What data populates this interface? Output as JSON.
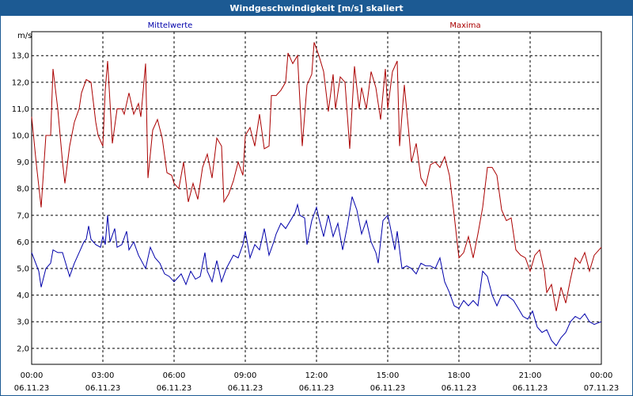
{
  "window": {
    "title": "Windgeschwindigkeit [m/s] skaliert"
  },
  "colors": {
    "mean": "#0000aa",
    "max": "#aa0000",
    "grid": "#000000",
    "titlebar": "#1c5a93"
  },
  "chart_data": {
    "type": "line",
    "title": "Windgeschwindigkeit [m/s] skaliert",
    "ylabel": "m/s",
    "xlabel": "",
    "ylim": [
      1.4,
      13.9
    ],
    "xlim": [
      0,
      24
    ],
    "grid": true,
    "legend_placement": "top",
    "x_ticks": [
      {
        "x": 0,
        "time": "00:00",
        "date": "06.11.23"
      },
      {
        "x": 3,
        "time": "03:00",
        "date": "06.11.23"
      },
      {
        "x": 6,
        "time": "06:00",
        "date": "06.11.23"
      },
      {
        "x": 9,
        "time": "09:00",
        "date": "06.11.23"
      },
      {
        "x": 12,
        "time": "12:00",
        "date": "06.11.23"
      },
      {
        "x": 15,
        "time": "15:00",
        "date": "06.11.23"
      },
      {
        "x": 18,
        "time": "18:00",
        "date": "06.11.23"
      },
      {
        "x": 21,
        "time": "21:00",
        "date": "06.11.23"
      },
      {
        "x": 24,
        "time": "00:00",
        "date": "07.11.23"
      }
    ],
    "y_ticks": [
      {
        "v": 2.0,
        "label": "2,0"
      },
      {
        "v": 3.0,
        "label": "3,0"
      },
      {
        "v": 4.0,
        "label": "4,0"
      },
      {
        "v": 5.0,
        "label": "5,0"
      },
      {
        "v": 6.0,
        "label": "6,0"
      },
      {
        "v": 7.0,
        "label": "7,0"
      },
      {
        "v": 8.0,
        "label": "8,0"
      },
      {
        "v": 9.0,
        "label": "9,0"
      },
      {
        "v": 10.0,
        "label": "10,0"
      },
      {
        "v": 11.0,
        "label": "11,0"
      },
      {
        "v": 12.0,
        "label": "12,0"
      },
      {
        "v": 13.0,
        "label": "13,0"
      }
    ],
    "series": [
      {
        "name": "Mittelwerte",
        "color": "#0000aa",
        "points": [
          [
            0.0,
            5.6
          ],
          [
            0.3,
            4.9
          ],
          [
            0.4,
            4.3
          ],
          [
            0.6,
            5.0
          ],
          [
            0.8,
            5.2
          ],
          [
            0.9,
            5.7
          ],
          [
            1.1,
            5.6
          ],
          [
            1.3,
            5.6
          ],
          [
            1.5,
            5.0
          ],
          [
            1.6,
            4.7
          ],
          [
            1.8,
            5.2
          ],
          [
            2.0,
            5.6
          ],
          [
            2.2,
            6.0
          ],
          [
            2.3,
            6.1
          ],
          [
            2.4,
            6.6
          ],
          [
            2.5,
            6.1
          ],
          [
            2.7,
            5.9
          ],
          [
            2.9,
            5.8
          ],
          [
            3.0,
            6.2
          ],
          [
            3.1,
            5.9
          ],
          [
            3.2,
            7.0
          ],
          [
            3.3,
            6.0
          ],
          [
            3.5,
            6.5
          ],
          [
            3.6,
            5.8
          ],
          [
            3.8,
            5.9
          ],
          [
            4.0,
            6.4
          ],
          [
            4.1,
            5.7
          ],
          [
            4.3,
            6.0
          ],
          [
            4.5,
            5.5
          ],
          [
            4.8,
            5.0
          ],
          [
            5.0,
            5.8
          ],
          [
            5.2,
            5.4
          ],
          [
            5.4,
            5.2
          ],
          [
            5.6,
            4.8
          ],
          [
            5.8,
            4.7
          ],
          [
            6.0,
            4.5
          ],
          [
            6.1,
            4.6
          ],
          [
            6.3,
            4.8
          ],
          [
            6.5,
            4.4
          ],
          [
            6.7,
            4.9
          ],
          [
            6.9,
            4.6
          ],
          [
            7.1,
            4.7
          ],
          [
            7.3,
            5.6
          ],
          [
            7.4,
            4.9
          ],
          [
            7.6,
            4.5
          ],
          [
            7.8,
            5.3
          ],
          [
            8.0,
            4.5
          ],
          [
            8.2,
            5.0
          ],
          [
            8.5,
            5.5
          ],
          [
            8.7,
            5.4
          ],
          [
            8.9,
            5.9
          ],
          [
            9.0,
            6.4
          ],
          [
            9.2,
            5.4
          ],
          [
            9.4,
            5.9
          ],
          [
            9.6,
            5.7
          ],
          [
            9.8,
            6.5
          ],
          [
            10.0,
            5.5
          ],
          [
            10.2,
            6.0
          ],
          [
            10.3,
            6.3
          ],
          [
            10.5,
            6.7
          ],
          [
            10.7,
            6.5
          ],
          [
            10.9,
            6.8
          ],
          [
            11.1,
            7.1
          ],
          [
            11.2,
            7.4
          ],
          [
            11.3,
            7.0
          ],
          [
            11.5,
            6.9
          ],
          [
            11.6,
            5.9
          ],
          [
            11.8,
            6.8
          ],
          [
            12.0,
            7.3
          ],
          [
            12.1,
            6.9
          ],
          [
            12.3,
            6.2
          ],
          [
            12.5,
            7.0
          ],
          [
            12.7,
            6.2
          ],
          [
            12.9,
            6.7
          ],
          [
            13.1,
            5.7
          ],
          [
            13.3,
            6.6
          ],
          [
            13.5,
            7.7
          ],
          [
            13.7,
            7.2
          ],
          [
            13.9,
            6.3
          ],
          [
            14.1,
            6.8
          ],
          [
            14.3,
            6.0
          ],
          [
            14.5,
            5.6
          ],
          [
            14.6,
            5.2
          ],
          [
            14.8,
            6.8
          ],
          [
            15.0,
            7.0
          ],
          [
            15.1,
            6.6
          ],
          [
            15.3,
            5.7
          ],
          [
            15.4,
            6.4
          ],
          [
            15.6,
            5.0
          ],
          [
            15.8,
            5.1
          ],
          [
            16.0,
            5.0
          ],
          [
            16.2,
            4.8
          ],
          [
            16.4,
            5.2
          ],
          [
            16.6,
            5.1
          ],
          [
            16.8,
            5.1
          ],
          [
            17.0,
            5.0
          ],
          [
            17.2,
            5.4
          ],
          [
            17.4,
            4.5
          ],
          [
            17.6,
            4.1
          ],
          [
            17.8,
            3.6
          ],
          [
            18.0,
            3.5
          ],
          [
            18.2,
            3.8
          ],
          [
            18.4,
            3.6
          ],
          [
            18.6,
            3.8
          ],
          [
            18.8,
            3.6
          ],
          [
            19.0,
            4.9
          ],
          [
            19.2,
            4.7
          ],
          [
            19.4,
            4.0
          ],
          [
            19.6,
            3.6
          ],
          [
            19.8,
            4.0
          ],
          [
            20.0,
            4.0
          ],
          [
            20.3,
            3.8
          ],
          [
            20.5,
            3.5
          ],
          [
            20.7,
            3.2
          ],
          [
            20.9,
            3.1
          ],
          [
            21.1,
            3.4
          ],
          [
            21.3,
            2.8
          ],
          [
            21.5,
            2.6
          ],
          [
            21.7,
            2.7
          ],
          [
            21.9,
            2.3
          ],
          [
            22.1,
            2.1
          ],
          [
            22.3,
            2.4
          ],
          [
            22.5,
            2.6
          ],
          [
            22.7,
            3.0
          ],
          [
            22.9,
            3.2
          ],
          [
            23.1,
            3.1
          ],
          [
            23.3,
            3.3
          ],
          [
            23.5,
            3.0
          ],
          [
            23.7,
            2.9
          ],
          [
            24.0,
            3.0
          ]
        ]
      },
      {
        "name": "Maxima",
        "color": "#aa0000",
        "points": [
          [
            0.0,
            10.7
          ],
          [
            0.2,
            8.9
          ],
          [
            0.4,
            7.3
          ],
          [
            0.6,
            10.0
          ],
          [
            0.8,
            10.0
          ],
          [
            0.9,
            12.5
          ],
          [
            1.1,
            11.0
          ],
          [
            1.3,
            9.0
          ],
          [
            1.4,
            8.2
          ],
          [
            1.6,
            9.6
          ],
          [
            1.8,
            10.5
          ],
          [
            2.0,
            11.0
          ],
          [
            2.1,
            11.6
          ],
          [
            2.3,
            12.1
          ],
          [
            2.5,
            12.0
          ],
          [
            2.7,
            10.5
          ],
          [
            2.8,
            10.0
          ],
          [
            3.0,
            9.6
          ],
          [
            3.1,
            11.7
          ],
          [
            3.2,
            12.8
          ],
          [
            3.4,
            9.7
          ],
          [
            3.6,
            11.0
          ],
          [
            3.8,
            11.0
          ],
          [
            3.9,
            10.8
          ],
          [
            4.1,
            11.6
          ],
          [
            4.3,
            10.8
          ],
          [
            4.5,
            11.2
          ],
          [
            4.6,
            10.7
          ],
          [
            4.8,
            12.7
          ],
          [
            4.9,
            8.4
          ],
          [
            5.1,
            10.2
          ],
          [
            5.3,
            10.6
          ],
          [
            5.5,
            9.9
          ],
          [
            5.7,
            8.6
          ],
          [
            5.9,
            8.5
          ],
          [
            6.0,
            8.2
          ],
          [
            6.2,
            8.0
          ],
          [
            6.4,
            9.0
          ],
          [
            6.6,
            7.5
          ],
          [
            6.8,
            8.2
          ],
          [
            7.0,
            7.6
          ],
          [
            7.2,
            8.8
          ],
          [
            7.4,
            9.3
          ],
          [
            7.6,
            8.4
          ],
          [
            7.8,
            9.9
          ],
          [
            8.0,
            9.6
          ],
          [
            8.1,
            7.5
          ],
          [
            8.3,
            7.8
          ],
          [
            8.5,
            8.3
          ],
          [
            8.7,
            9.0
          ],
          [
            8.9,
            8.5
          ],
          [
            9.0,
            10.0
          ],
          [
            9.2,
            10.3
          ],
          [
            9.4,
            9.6
          ],
          [
            9.6,
            10.8
          ],
          [
            9.8,
            9.5
          ],
          [
            10.0,
            9.6
          ],
          [
            10.1,
            11.5
          ],
          [
            10.3,
            11.5
          ],
          [
            10.5,
            11.7
          ],
          [
            10.7,
            12.0
          ],
          [
            10.8,
            13.1
          ],
          [
            11.0,
            12.7
          ],
          [
            11.2,
            13.0
          ],
          [
            11.4,
            9.6
          ],
          [
            11.6,
            11.9
          ],
          [
            11.8,
            12.3
          ],
          [
            11.9,
            13.5
          ],
          [
            12.1,
            13.0
          ],
          [
            12.3,
            12.4
          ],
          [
            12.5,
            10.9
          ],
          [
            12.7,
            12.3
          ],
          [
            12.8,
            11.0
          ],
          [
            13.0,
            12.2
          ],
          [
            13.2,
            12.0
          ],
          [
            13.4,
            9.5
          ],
          [
            13.6,
            12.6
          ],
          [
            13.8,
            11.0
          ],
          [
            13.9,
            11.8
          ],
          [
            14.1,
            11.0
          ],
          [
            14.3,
            12.4
          ],
          [
            14.5,
            11.8
          ],
          [
            14.7,
            10.6
          ],
          [
            14.9,
            12.5
          ],
          [
            15.0,
            11.0
          ],
          [
            15.2,
            12.4
          ],
          [
            15.4,
            12.8
          ],
          [
            15.5,
            9.6
          ],
          [
            15.7,
            11.9
          ],
          [
            15.9,
            10.0
          ],
          [
            16.0,
            9.0
          ],
          [
            16.2,
            9.7
          ],
          [
            16.4,
            8.4
          ],
          [
            16.6,
            8.1
          ],
          [
            16.8,
            8.9
          ],
          [
            17.0,
            9.0
          ],
          [
            17.2,
            8.8
          ],
          [
            17.4,
            9.2
          ],
          [
            17.6,
            8.5
          ],
          [
            17.8,
            7.0
          ],
          [
            18.0,
            5.4
          ],
          [
            18.2,
            5.6
          ],
          [
            18.4,
            6.2
          ],
          [
            18.6,
            5.4
          ],
          [
            18.8,
            6.3
          ],
          [
            19.0,
            7.3
          ],
          [
            19.2,
            8.8
          ],
          [
            19.4,
            8.8
          ],
          [
            19.6,
            8.5
          ],
          [
            19.8,
            7.2
          ],
          [
            20.0,
            6.8
          ],
          [
            20.2,
            6.9
          ],
          [
            20.4,
            5.7
          ],
          [
            20.6,
            5.5
          ],
          [
            20.8,
            5.4
          ],
          [
            21.0,
            4.9
          ],
          [
            21.2,
            5.5
          ],
          [
            21.4,
            5.7
          ],
          [
            21.6,
            4.9
          ],
          [
            21.7,
            4.1
          ],
          [
            21.9,
            4.4
          ],
          [
            22.1,
            3.4
          ],
          [
            22.3,
            4.3
          ],
          [
            22.5,
            3.7
          ],
          [
            22.7,
            4.6
          ],
          [
            22.9,
            5.4
          ],
          [
            23.1,
            5.2
          ],
          [
            23.3,
            5.6
          ],
          [
            23.5,
            4.9
          ],
          [
            23.7,
            5.5
          ],
          [
            24.0,
            5.8
          ]
        ]
      }
    ]
  }
}
